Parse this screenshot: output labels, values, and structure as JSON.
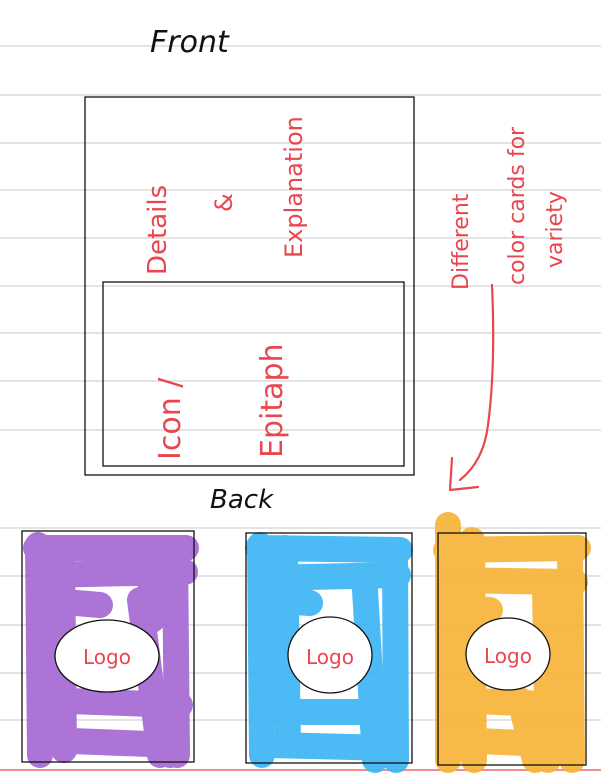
{
  "front": {
    "title": "Front",
    "details_line1": "Details",
    "details_line2": "&",
    "details_line3": "Explanation",
    "icon_label": "Icon /",
    "epitaph_label": "Epitaph"
  },
  "back": {
    "title": "Back",
    "cards": [
      {
        "logo": "Logo",
        "color": "#a569d4"
      },
      {
        "logo": "Logo",
        "color": "#3db6f5"
      },
      {
        "logo": "Logo",
        "color": "#f7b53a"
      }
    ]
  },
  "note": {
    "line1": "Different",
    "line2": "color cards for",
    "line3": "variety"
  },
  "colors": {
    "ruled_line": "#c8c8c8",
    "margin_line": "#f08c8c",
    "ink_black": "#111111",
    "ink_red": "#e8474f"
  }
}
